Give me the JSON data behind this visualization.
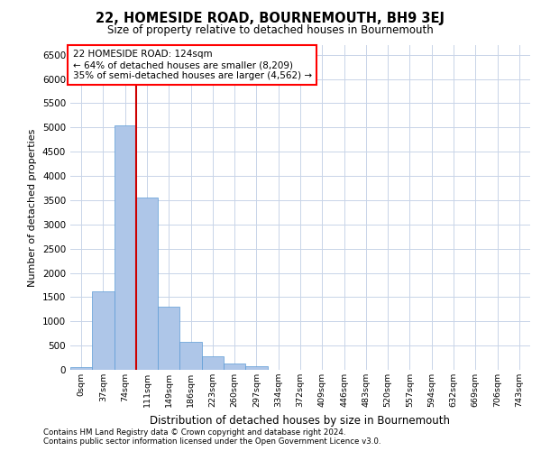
{
  "title": "22, HOMESIDE ROAD, BOURNEMOUTH, BH9 3EJ",
  "subtitle": "Size of property relative to detached houses in Bournemouth",
  "xlabel": "Distribution of detached houses by size in Bournemouth",
  "ylabel": "Number of detached properties",
  "categories": [
    "0sqm",
    "37sqm",
    "74sqm",
    "111sqm",
    "149sqm",
    "186sqm",
    "223sqm",
    "260sqm",
    "297sqm",
    "334sqm",
    "372sqm",
    "409sqm",
    "446sqm",
    "483sqm",
    "520sqm",
    "557sqm",
    "594sqm",
    "632sqm",
    "669sqm",
    "706sqm",
    "743sqm"
  ],
  "bar_heights": [
    50,
    1620,
    5050,
    3560,
    1310,
    570,
    270,
    130,
    80,
    0,
    0,
    0,
    0,
    0,
    0,
    0,
    0,
    0,
    0,
    0,
    0
  ],
  "bar_color": "#aec6e8",
  "bar_edge_color": "#5b9bd5",
  "background_color": "#ffffff",
  "grid_color": "#c8d4e8",
  "annotation_line1": "22 HOMESIDE ROAD: 124sqm",
  "annotation_line2": "← 64% of detached houses are smaller (8,209)",
  "annotation_line3": "35% of semi-detached houses are larger (4,562) →",
  "vline_x": 2.5,
  "vline_color": "#cc0000",
  "ylim": [
    0,
    6700
  ],
  "yticks": [
    0,
    500,
    1000,
    1500,
    2000,
    2500,
    3000,
    3500,
    4000,
    4500,
    5000,
    5500,
    6000,
    6500
  ],
  "footnote1": "Contains HM Land Registry data © Crown copyright and database right 2024.",
  "footnote2": "Contains public sector information licensed under the Open Government Licence v3.0."
}
